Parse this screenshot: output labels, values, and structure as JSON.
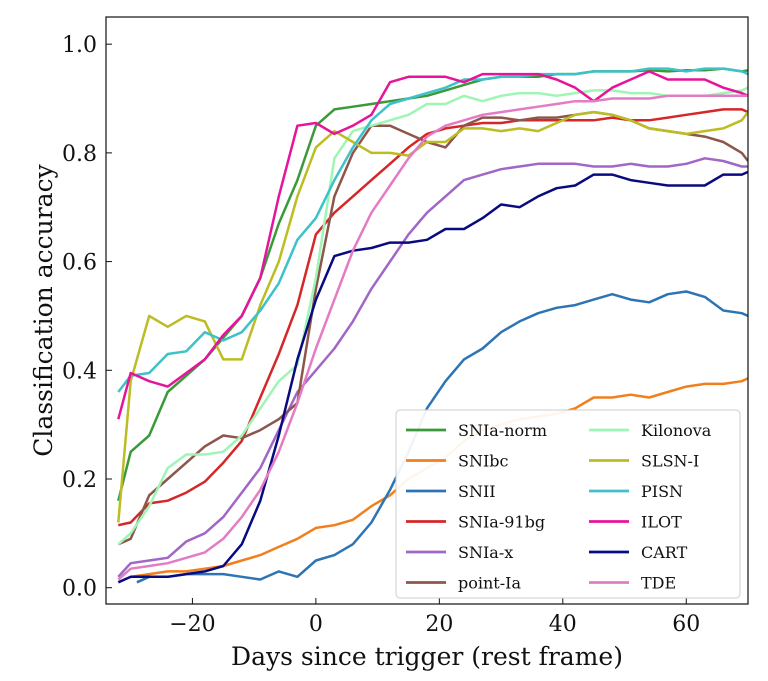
{
  "chart_data": {
    "type": "line",
    "xlabel": "Days since trigger (rest frame)",
    "ylabel": "Classification accuracy",
    "xlim": [
      -34,
      70
    ],
    "ylim": [
      -0.03,
      1.05
    ],
    "xticks": [
      -20,
      0,
      20,
      40,
      60
    ],
    "xtick_labels": [
      "−20",
      "0",
      "20",
      "40",
      "60"
    ],
    "yticks": [
      0.0,
      0.2,
      0.4,
      0.6,
      0.8,
      1.0
    ],
    "ytick_labels": [
      "0.0",
      "0.2",
      "0.4",
      "0.6",
      "0.8",
      "1.0"
    ],
    "grid": false,
    "legend": {
      "placement": "lower-right",
      "columns": 2
    },
    "series": [
      {
        "name": "SNIa-norm",
        "color": "#3a9a3a",
        "x": [
          -32,
          -30,
          -27,
          -24,
          -21,
          -18,
          -15,
          -12,
          -9,
          -6,
          -3,
          0,
          3,
          6,
          9,
          12,
          15,
          18,
          21,
          24,
          27,
          30,
          33,
          36,
          39,
          42,
          45,
          48,
          51,
          54,
          57,
          60,
          63,
          66,
          69,
          70
        ],
        "y": [
          0.16,
          0.25,
          0.28,
          0.36,
          0.39,
          0.42,
          0.46,
          0.5,
          0.57,
          0.67,
          0.75,
          0.85,
          0.88,
          0.885,
          0.89,
          0.895,
          0.9,
          0.905,
          0.915,
          0.925,
          0.935,
          0.94,
          0.94,
          0.94,
          0.945,
          0.945,
          0.95,
          0.95,
          0.95,
          0.952,
          0.95,
          0.952,
          0.952,
          0.955,
          0.95,
          0.952
        ]
      },
      {
        "name": "SNIbc",
        "color": "#f07f1e",
        "x": [
          -30,
          -27,
          -24,
          -21,
          -18,
          -15,
          -12,
          -9,
          -6,
          -3,
          0,
          3,
          6,
          9,
          12,
          15,
          18,
          21,
          24,
          27,
          30,
          33,
          36,
          39,
          42,
          45,
          48,
          51,
          54,
          57,
          60,
          63,
          66,
          69,
          70
        ],
        "y": [
          0.02,
          0.025,
          0.03,
          0.03,
          0.035,
          0.04,
          0.05,
          0.06,
          0.075,
          0.09,
          0.11,
          0.115,
          0.125,
          0.15,
          0.17,
          0.2,
          0.22,
          0.24,
          0.27,
          0.29,
          0.3,
          0.31,
          0.315,
          0.32,
          0.33,
          0.35,
          0.35,
          0.355,
          0.35,
          0.36,
          0.37,
          0.375,
          0.375,
          0.38,
          0.385
        ]
      },
      {
        "name": "SNII",
        "color": "#2e74b5",
        "x": [
          -29,
          -27,
          -24,
          -21,
          -18,
          -15,
          -12,
          -9,
          -6,
          -3,
          0,
          3,
          6,
          9,
          12,
          15,
          18,
          21,
          24,
          27,
          30,
          33,
          36,
          39,
          42,
          45,
          48,
          51,
          54,
          57,
          60,
          63,
          66,
          69,
          70
        ],
        "y": [
          0.01,
          0.02,
          0.02,
          0.025,
          0.025,
          0.025,
          0.02,
          0.015,
          0.03,
          0.02,
          0.05,
          0.06,
          0.08,
          0.12,
          0.18,
          0.25,
          0.33,
          0.38,
          0.42,
          0.44,
          0.47,
          0.49,
          0.505,
          0.515,
          0.52,
          0.53,
          0.54,
          0.53,
          0.525,
          0.54,
          0.545,
          0.535,
          0.51,
          0.505,
          0.5
        ]
      },
      {
        "name": "SNIa-91bg",
        "color": "#d62728",
        "x": [
          -32,
          -30,
          -27,
          -24,
          -21,
          -18,
          -15,
          -12,
          -9,
          -6,
          -3,
          0,
          3,
          6,
          9,
          12,
          15,
          18,
          21,
          24,
          27,
          30,
          33,
          36,
          39,
          42,
          45,
          48,
          51,
          54,
          57,
          60,
          63,
          66,
          69,
          70
        ],
        "y": [
          0.115,
          0.12,
          0.155,
          0.16,
          0.175,
          0.195,
          0.23,
          0.27,
          0.35,
          0.43,
          0.52,
          0.65,
          0.69,
          0.72,
          0.75,
          0.78,
          0.81,
          0.835,
          0.845,
          0.85,
          0.855,
          0.855,
          0.86,
          0.86,
          0.86,
          0.86,
          0.86,
          0.865,
          0.86,
          0.86,
          0.865,
          0.87,
          0.875,
          0.88,
          0.88,
          0.875
        ]
      },
      {
        "name": "SNIa-x",
        "color": "#a066c8",
        "x": [
          -32,
          -30,
          -27,
          -24,
          -21,
          -18,
          -15,
          -12,
          -9,
          -6,
          -3,
          0,
          3,
          6,
          9,
          12,
          15,
          18,
          21,
          24,
          27,
          30,
          33,
          36,
          39,
          42,
          45,
          48,
          51,
          54,
          57,
          60,
          63,
          66,
          69,
          70
        ],
        "y": [
          0.02,
          0.045,
          0.05,
          0.055,
          0.085,
          0.1,
          0.13,
          0.175,
          0.22,
          0.29,
          0.36,
          0.4,
          0.44,
          0.49,
          0.55,
          0.6,
          0.65,
          0.69,
          0.72,
          0.75,
          0.76,
          0.77,
          0.775,
          0.78,
          0.78,
          0.78,
          0.775,
          0.775,
          0.78,
          0.775,
          0.775,
          0.78,
          0.79,
          0.785,
          0.775,
          0.775
        ]
      },
      {
        "name": "point-Ia",
        "color": "#8c564b",
        "x": [
          -32,
          -30,
          -27,
          -24,
          -21,
          -18,
          -15,
          -12,
          -9,
          -6,
          -3,
          0,
          3,
          6,
          9,
          12,
          15,
          18,
          21,
          24,
          27,
          30,
          33,
          36,
          39,
          42,
          45,
          48,
          51,
          54,
          57,
          60,
          63,
          66,
          69,
          70
        ],
        "y": [
          0.08,
          0.09,
          0.17,
          0.2,
          0.23,
          0.26,
          0.28,
          0.275,
          0.29,
          0.31,
          0.34,
          0.55,
          0.72,
          0.8,
          0.85,
          0.85,
          0.835,
          0.82,
          0.81,
          0.85,
          0.865,
          0.865,
          0.86,
          0.865,
          0.865,
          0.87,
          0.875,
          0.87,
          0.86,
          0.845,
          0.84,
          0.835,
          0.83,
          0.82,
          0.8,
          0.785
        ]
      },
      {
        "name": "Kilonova",
        "color": "#9ff5b4",
        "x": [
          -32,
          -30,
          -27,
          -24,
          -21,
          -18,
          -15,
          -12,
          -9,
          -6,
          -3,
          0,
          3,
          6,
          9,
          12,
          15,
          18,
          21,
          24,
          27,
          30,
          33,
          36,
          39,
          42,
          45,
          48,
          51,
          54,
          57,
          60,
          63,
          66,
          69,
          70
        ],
        "y": [
          0.08,
          0.1,
          0.15,
          0.22,
          0.245,
          0.245,
          0.25,
          0.28,
          0.33,
          0.38,
          0.41,
          0.57,
          0.79,
          0.84,
          0.85,
          0.86,
          0.87,
          0.89,
          0.89,
          0.905,
          0.895,
          0.905,
          0.91,
          0.91,
          0.905,
          0.91,
          0.915,
          0.915,
          0.91,
          0.91,
          0.905,
          0.905,
          0.905,
          0.91,
          0.915,
          0.92
        ]
      },
      {
        "name": "SLSN-I",
        "color": "#bcbd22",
        "x": [
          -32,
          -30,
          -27,
          -24,
          -21,
          -18,
          -15,
          -12,
          -9,
          -6,
          -3,
          0,
          3,
          6,
          9,
          12,
          15,
          18,
          21,
          24,
          27,
          30,
          33,
          36,
          39,
          42,
          45,
          48,
          51,
          54,
          57,
          60,
          63,
          66,
          69,
          70
        ],
        "y": [
          0.12,
          0.38,
          0.5,
          0.48,
          0.5,
          0.49,
          0.42,
          0.42,
          0.52,
          0.6,
          0.72,
          0.81,
          0.84,
          0.82,
          0.8,
          0.8,
          0.795,
          0.82,
          0.82,
          0.845,
          0.845,
          0.84,
          0.845,
          0.84,
          0.855,
          0.87,
          0.875,
          0.87,
          0.86,
          0.845,
          0.84,
          0.835,
          0.84,
          0.845,
          0.86,
          0.875
        ]
      },
      {
        "name": "PISN",
        "color": "#3fc1c9",
        "x": [
          -32,
          -30,
          -27,
          -24,
          -21,
          -18,
          -15,
          -12,
          -9,
          -6,
          -3,
          0,
          3,
          6,
          9,
          12,
          15,
          18,
          21,
          24,
          27,
          30,
          33,
          36,
          39,
          42,
          45,
          48,
          51,
          54,
          57,
          60,
          63,
          66,
          69,
          70
        ],
        "y": [
          0.36,
          0.39,
          0.395,
          0.43,
          0.435,
          0.47,
          0.455,
          0.47,
          0.51,
          0.56,
          0.64,
          0.68,
          0.75,
          0.81,
          0.86,
          0.89,
          0.9,
          0.91,
          0.92,
          0.935,
          0.935,
          0.94,
          0.94,
          0.945,
          0.945,
          0.945,
          0.95,
          0.95,
          0.95,
          0.955,
          0.955,
          0.95,
          0.955,
          0.955,
          0.95,
          0.945
        ]
      },
      {
        "name": "ILOT",
        "color": "#e5149a",
        "x": [
          -32,
          -30,
          -27,
          -24,
          -21,
          -18,
          -15,
          -12,
          -9,
          -6,
          -3,
          0,
          3,
          6,
          9,
          12,
          15,
          18,
          21,
          24,
          27,
          30,
          33,
          36,
          39,
          42,
          45,
          48,
          51,
          54,
          57,
          60,
          63,
          66,
          69,
          70
        ],
        "y": [
          0.31,
          0.395,
          0.38,
          0.37,
          0.395,
          0.42,
          0.465,
          0.5,
          0.57,
          0.72,
          0.85,
          0.855,
          0.835,
          0.85,
          0.87,
          0.93,
          0.94,
          0.94,
          0.94,
          0.93,
          0.945,
          0.945,
          0.945,
          0.945,
          0.935,
          0.92,
          0.895,
          0.92,
          0.935,
          0.95,
          0.935,
          0.935,
          0.935,
          0.92,
          0.91,
          0.905
        ]
      },
      {
        "name": "CART",
        "color": "#0a0a80",
        "x": [
          -32,
          -30,
          -27,
          -24,
          -21,
          -18,
          -15,
          -12,
          -9,
          -6,
          -3,
          0,
          3,
          6,
          9,
          12,
          15,
          18,
          21,
          24,
          27,
          30,
          33,
          36,
          39,
          42,
          45,
          48,
          51,
          54,
          57,
          60,
          63,
          66,
          69,
          70
        ],
        "y": [
          0.01,
          0.02,
          0.02,
          0.02,
          0.025,
          0.03,
          0.04,
          0.08,
          0.16,
          0.28,
          0.42,
          0.53,
          0.61,
          0.62,
          0.625,
          0.635,
          0.635,
          0.64,
          0.66,
          0.66,
          0.68,
          0.705,
          0.7,
          0.72,
          0.735,
          0.74,
          0.76,
          0.76,
          0.75,
          0.745,
          0.74,
          0.74,
          0.74,
          0.76,
          0.76,
          0.765
        ]
      },
      {
        "name": "TDE",
        "color": "#e37bc5",
        "x": [
          -32,
          -30,
          -27,
          -24,
          -21,
          -18,
          -15,
          -12,
          -9,
          -6,
          -3,
          0,
          3,
          6,
          9,
          12,
          15,
          18,
          21,
          24,
          27,
          30,
          33,
          36,
          39,
          42,
          45,
          48,
          51,
          54,
          57,
          60,
          63,
          66,
          69,
          70
        ],
        "y": [
          0.015,
          0.035,
          0.04,
          0.045,
          0.055,
          0.065,
          0.09,
          0.13,
          0.18,
          0.25,
          0.34,
          0.44,
          0.53,
          0.62,
          0.69,
          0.74,
          0.79,
          0.83,
          0.85,
          0.86,
          0.87,
          0.875,
          0.88,
          0.885,
          0.89,
          0.895,
          0.895,
          0.9,
          0.9,
          0.9,
          0.905,
          0.905,
          0.905,
          0.905,
          0.905,
          0.905
        ]
      }
    ]
  }
}
